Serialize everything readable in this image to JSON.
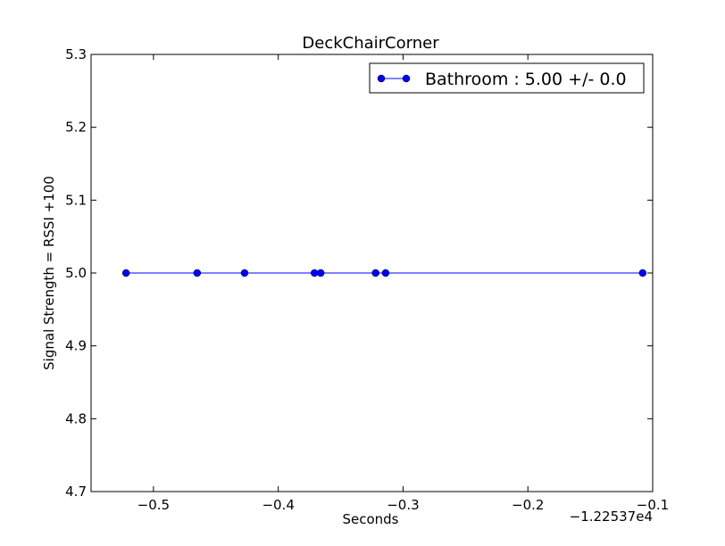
{
  "chart_data": {
    "type": "line",
    "title": "DeckChairCorner",
    "xlabel": "Seconds",
    "ylabel": "Signal Strength  = RSSI +100",
    "x_offset_label": "−1.22537e4",
    "xlim": [
      -0.55,
      -0.1
    ],
    "ylim": [
      4.7,
      5.3
    ],
    "xticks": [
      -0.5,
      -0.4,
      -0.3,
      -0.2,
      -0.1
    ],
    "xtick_labels": [
      "−0.5",
      "−0.4",
      "−0.3",
      "−0.2",
      "−0.1"
    ],
    "yticks": [
      4.7,
      4.8,
      4.9,
      5.0,
      5.1,
      5.2,
      5.3
    ],
    "ytick_labels": [
      "4.7",
      "4.8",
      "4.9",
      "5.0",
      "5.1",
      "5.2",
      "5.3"
    ],
    "grid": false,
    "legend_position": "top-right",
    "series": [
      {
        "name": "Bathroom : 5.00 +/- 0.0",
        "color": "#0000ff",
        "marker": "circle",
        "x": [
          -0.522,
          -0.465,
          -0.427,
          -0.371,
          -0.366,
          -0.322,
          -0.314,
          -0.108
        ],
        "y": [
          5.0,
          5.0,
          5.0,
          5.0,
          5.0,
          5.0,
          5.0,
          5.0
        ]
      }
    ]
  }
}
